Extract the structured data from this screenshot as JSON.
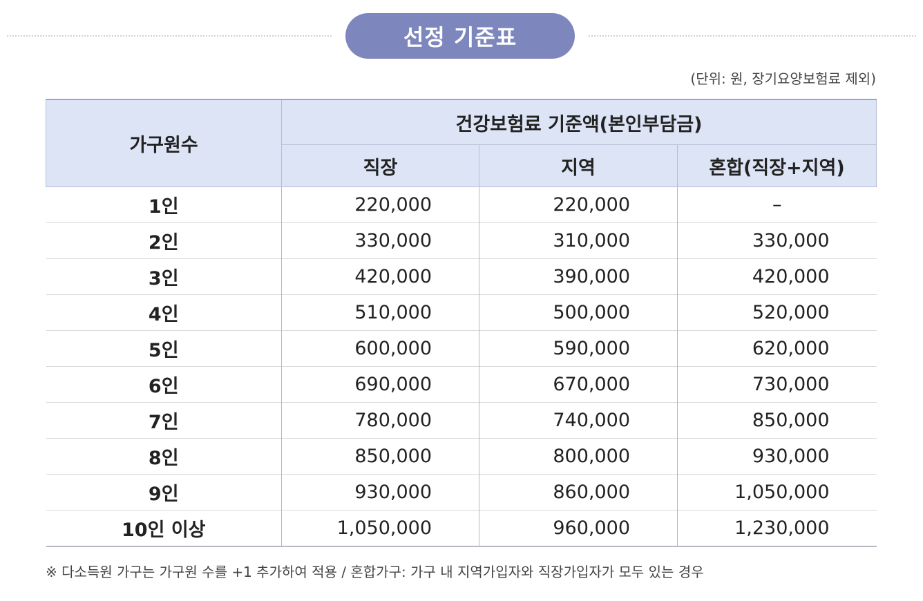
{
  "title": "선정 기준표",
  "unit_note": "(단위: 원, 장기요양보험료 제외)",
  "table": {
    "row_header": "가구원수",
    "group_header": "건강보험료 기준액(본인부담금)",
    "sub_headers": [
      "직장",
      "지역",
      "혼합(직장+지역)"
    ],
    "rows": [
      {
        "label": "1인",
        "jikjang": "220,000",
        "jiyeok": "220,000",
        "honhap": "–"
      },
      {
        "label": "2인",
        "jikjang": "330,000",
        "jiyeok": "310,000",
        "honhap": "330,000"
      },
      {
        "label": "3인",
        "jikjang": "420,000",
        "jiyeok": "390,000",
        "honhap": "420,000"
      },
      {
        "label": "4인",
        "jikjang": "510,000",
        "jiyeok": "500,000",
        "honhap": "520,000"
      },
      {
        "label": "5인",
        "jikjang": "600,000",
        "jiyeok": "590,000",
        "honhap": "620,000"
      },
      {
        "label": "6인",
        "jikjang": "690,000",
        "jiyeok": "670,000",
        "honhap": "730,000"
      },
      {
        "label": "7인",
        "jikjang": "780,000",
        "jiyeok": "740,000",
        "honhap": "850,000"
      },
      {
        "label": "8인",
        "jikjang": "850,000",
        "jiyeok": "800,000",
        "honhap": "930,000"
      },
      {
        "label": "9인",
        "jikjang": "930,000",
        "jiyeok": "860,000",
        "honhap": "1,050,000"
      },
      {
        "label": "10인 이상",
        "jikjang": "1,050,000",
        "jiyeok": "960,000",
        "honhap": "1,230,000"
      }
    ]
  },
  "footnote": "※ 다소득원 가구는 가구원 수를 +1 추가하여 적용 / 혼합가구: 가구 내 지역가입자와 직장가입자가 모두 있는 경우",
  "colors": {
    "pill": "#7d86bd",
    "header_bg": "#dde4f6"
  }
}
